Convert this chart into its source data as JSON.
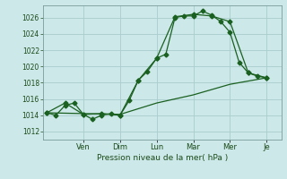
{
  "bg_color": "#cce8e8",
  "grid_color": "#aacccc",
  "line_color": "#1a6020",
  "marker_color": "#1a6020",
  "xlabel": "Pression niveau de la mer( hPa )",
  "ylim": [
    1011.0,
    1027.5
  ],
  "yticks": [
    1012,
    1014,
    1016,
    1018,
    1020,
    1022,
    1024,
    1026
  ],
  "x_day_labels": [
    "Ven",
    "Dim",
    "Lun",
    "Mar",
    "Mer",
    "Je"
  ],
  "x_day_positions": [
    2.0,
    4.0,
    6.0,
    8.0,
    10.0,
    12.0
  ],
  "series1_x": [
    0,
    0.5,
    1.0,
    1.5,
    2.0,
    2.5,
    3.0,
    3.5,
    4.0,
    4.5,
    5.0,
    5.5,
    6.0,
    6.5,
    7.0,
    7.5,
    8.0,
    8.5,
    9.0,
    9.5,
    10.0,
    10.5,
    11.0,
    11.5,
    12.0
  ],
  "series1_y": [
    1014.3,
    1014.0,
    1015.2,
    1015.5,
    1014.1,
    1013.5,
    1014.0,
    1014.2,
    1014.0,
    1015.8,
    1018.3,
    1019.4,
    1021.0,
    1021.5,
    1026.0,
    1026.2,
    1026.2,
    1026.8,
    1026.3,
    1025.5,
    1024.2,
    1020.5,
    1019.2,
    1018.8,
    1018.6
  ],
  "series2_x": [
    0,
    1.0,
    2.0,
    3.0,
    4.0,
    5.0,
    6.0,
    7.0,
    8.0,
    9.0,
    10.0,
    11.0,
    12.0
  ],
  "series2_y": [
    1014.3,
    1015.5,
    1014.1,
    1014.2,
    1014.0,
    1018.3,
    1021.0,
    1026.1,
    1026.4,
    1026.2,
    1025.5,
    1019.2,
    1018.6
  ],
  "series3_x": [
    0,
    2.0,
    4.0,
    6.0,
    8.0,
    10.0,
    12.0
  ],
  "series3_y": [
    1014.3,
    1014.2,
    1014.1,
    1015.5,
    1016.5,
    1017.8,
    1018.6
  ],
  "xlim": [
    -0.2,
    12.8
  ]
}
